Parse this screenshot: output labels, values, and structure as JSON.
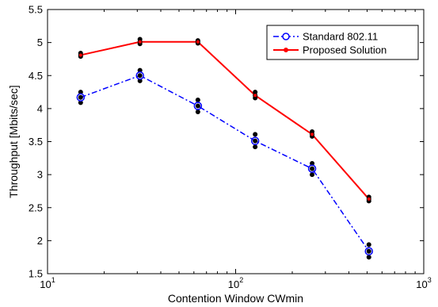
{
  "chart_data": {
    "type": "line",
    "xlabel": "Contention Window CWmin",
    "ylabel": "Throughput [Mbits/sec]",
    "x_scale": "log",
    "xlim": [
      10,
      1000
    ],
    "ylim": [
      1.5,
      5.5
    ],
    "x_ticks": [
      {
        "value": 10,
        "base": "10",
        "exp": "1"
      },
      {
        "value": 100,
        "base": "10",
        "exp": "2"
      },
      {
        "value": 1000,
        "base": "10",
        "exp": "3"
      }
    ],
    "y_ticks": [
      {
        "value": 1.5,
        "label": "1.5"
      },
      {
        "value": 2,
        "label": "2"
      },
      {
        "value": 2.5,
        "label": "2.5"
      },
      {
        "value": 3,
        "label": "3"
      },
      {
        "value": 3.5,
        "label": "3.5"
      },
      {
        "value": 4,
        "label": "4"
      },
      {
        "value": 4.5,
        "label": "4.5"
      },
      {
        "value": 5,
        "label": "5"
      },
      {
        "value": 5.5,
        "label": "5.5"
      }
    ],
    "legend_position": "top-right",
    "grid": false,
    "x": [
      15,
      31,
      63,
      127,
      255,
      511
    ],
    "series": [
      {
        "name": "Standard 802.11",
        "color": "#0000ff",
        "style": "dash-dot",
        "marker": "open-circle",
        "values": [
          4.17,
          4.5,
          4.04,
          3.51,
          3.09,
          1.84
        ],
        "samples": [
          [
            4.09,
            4.17,
            4.25
          ],
          [
            4.42,
            4.5,
            4.58
          ],
          [
            3.95,
            4.04,
            4.13
          ],
          [
            3.42,
            3.51,
            3.61
          ],
          [
            3.0,
            3.09,
            3.17
          ],
          [
            1.75,
            1.84,
            1.94
          ]
        ]
      },
      {
        "name": "Proposed Solution",
        "color": "#ff0000",
        "style": "solid",
        "marker": "dot",
        "values": [
          4.81,
          5.01,
          5.01,
          4.2,
          3.61,
          2.63
        ],
        "samples": [
          [
            4.79,
            4.81,
            4.84
          ],
          [
            4.98,
            5.01,
            5.05
          ],
          [
            4.99,
            5.01,
            5.03
          ],
          [
            4.16,
            4.2,
            4.25
          ],
          [
            3.58,
            3.61,
            3.65
          ],
          [
            2.6,
            2.63,
            2.66
          ]
        ]
      }
    ],
    "sample_marker_color": "#000000"
  }
}
